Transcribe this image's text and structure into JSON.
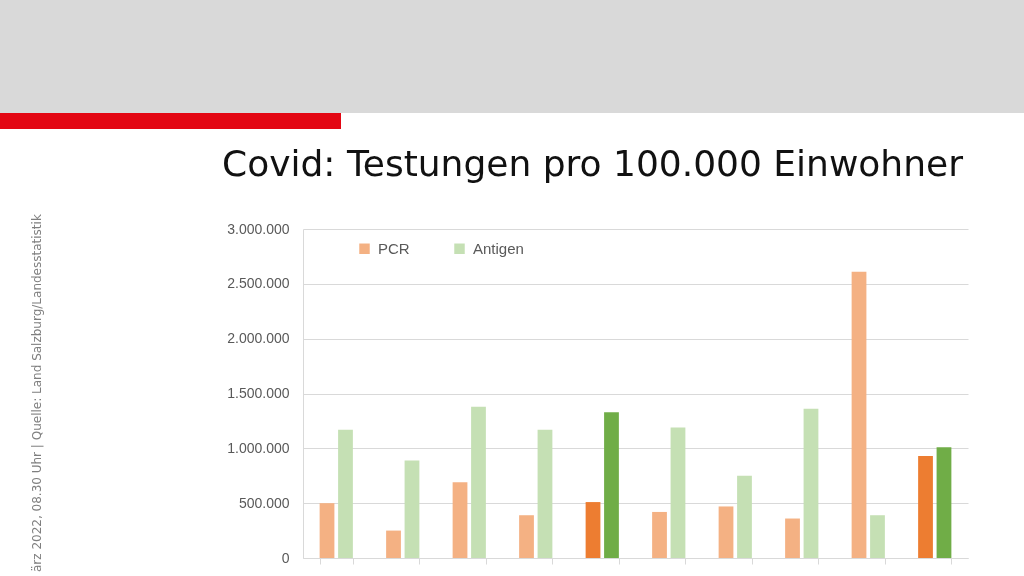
{
  "chart_data": {
    "type": "bar",
    "title": "Covid: Testungen pro 100.000 Einwohner",
    "annotations": [
      "ärz 2022, 08.30 Uhr | Quelle: Land Salzburg/Landesstatistik"
    ],
    "categories": [
      null,
      null,
      null,
      null,
      null,
      null,
      null,
      null,
      null,
      null
    ],
    "series": [
      {
        "name": "PCR",
        "color": "#f4b183",
        "colors": [
          "#f4b183",
          "#f4b183",
          "#f4b183",
          "#f4b183",
          "#ed7d31",
          "#f4b183",
          "#f4b183",
          "#f4b183",
          "#f4b183",
          "#ed7d31"
        ],
        "values": [
          500000,
          250000,
          690000,
          390000,
          510000,
          420000,
          470000,
          360000,
          2610000,
          930000
        ]
      },
      {
        "name": "Antigen",
        "color": "#c5e0b4",
        "colors": [
          "#c5e0b4",
          "#c5e0b4",
          "#c5e0b4",
          "#c5e0b4",
          "#70ad47",
          "#c5e0b4",
          "#c5e0b4",
          "#c5e0b4",
          "#c5e0b4",
          "#70ad47"
        ],
        "values": [
          1170000,
          890000,
          1380000,
          1170000,
          1330000,
          1190000,
          750000,
          1360000,
          390000,
          1010000
        ]
      }
    ],
    "ylim": [
      0,
      3000000
    ],
    "yticks": [
      0,
      {
        "value": 500000,
        "label": "500.000"
      },
      {
        "value": 1000000,
        "label": "1.000.000"
      },
      {
        "value": 1500000,
        "label": "1.500.000"
      },
      {
        "value": 2000000,
        "label": "2.000.000"
      },
      {
        "value": 2500000,
        "label": "2.500.000"
      },
      {
        "value": 3000000,
        "label": "3.000.000"
      }
    ],
    "grid": "y",
    "legend": "top"
  }
}
